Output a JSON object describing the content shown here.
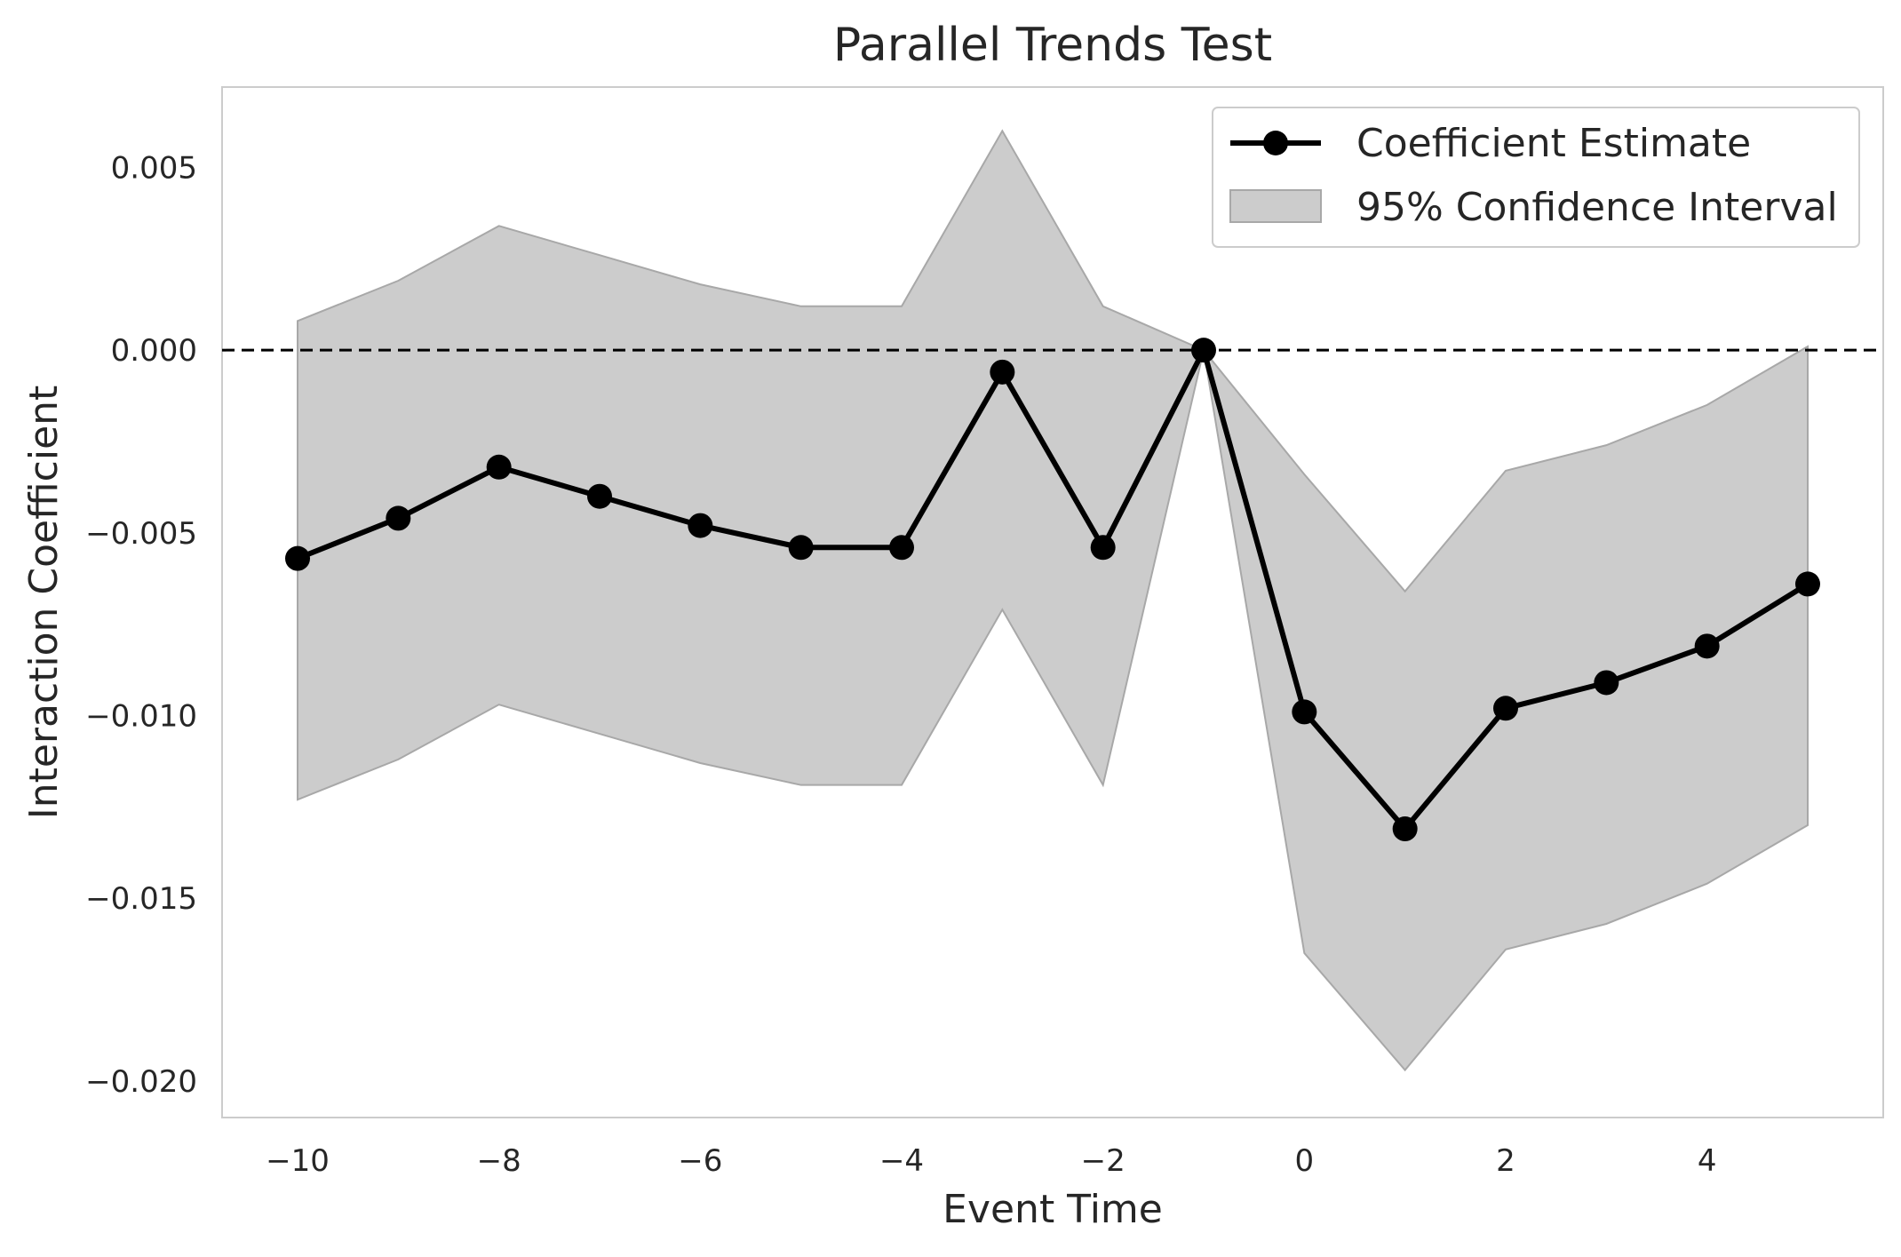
{
  "chart_data": {
    "type": "line",
    "title": "Parallel Trends Test",
    "xlabel": "Event Time",
    "ylabel": "Interaction Coefficient",
    "xlim": [
      -10.75,
      5.75
    ],
    "ylim": [
      -0.021,
      0.0072
    ],
    "x_ticks": [
      -10,
      -8,
      -6,
      -4,
      -2,
      0,
      2,
      4
    ],
    "x_tick_labels": [
      "−10",
      "−8",
      "−6",
      "−4",
      "−2",
      "0",
      "2",
      "4"
    ],
    "y_ticks": [
      0.005,
      0.0,
      -0.005,
      -0.01,
      -0.015,
      -0.02
    ],
    "y_tick_labels": [
      "0.005",
      "0.000",
      "−0.005",
      "−0.010",
      "−0.015",
      "−0.020"
    ],
    "grid": false,
    "legend_position": "top-right",
    "reference_line": {
      "y": 0.0,
      "style": "dashed",
      "color": "#000000"
    },
    "x": [
      -10,
      -9,
      -8,
      -7,
      -6,
      -5,
      -4,
      -3,
      -2,
      -1,
      0,
      1,
      2,
      3,
      4,
      5
    ],
    "series": [
      {
        "name": "Coefficient Estimate",
        "kind": "line-marker",
        "color": "#000000",
        "values": [
          -0.0057,
          -0.0046,
          -0.0032,
          -0.004,
          -0.0048,
          -0.0054,
          -0.0054,
          -0.0006,
          -0.0054,
          0.0,
          -0.0099,
          -0.0131,
          -0.0098,
          -0.0091,
          -0.0081,
          -0.0064
        ]
      },
      {
        "name": "95% Confidence Interval",
        "kind": "band",
        "color": "#cccccc",
        "lower": [
          -0.0123,
          -0.0112,
          -0.0097,
          -0.0105,
          -0.0113,
          -0.0119,
          -0.0119,
          -0.0071,
          -0.0119,
          0.0,
          -0.0165,
          -0.0197,
          -0.0164,
          -0.0157,
          -0.0146,
          -0.013
        ],
        "upper": [
          0.0008,
          0.0019,
          0.0034,
          0.0026,
          0.0018,
          0.0012,
          0.0012,
          0.006,
          0.0012,
          0.0,
          -0.0034,
          -0.0066,
          -0.0033,
          -0.0026,
          -0.0015,
          0.0001
        ]
      }
    ]
  }
}
